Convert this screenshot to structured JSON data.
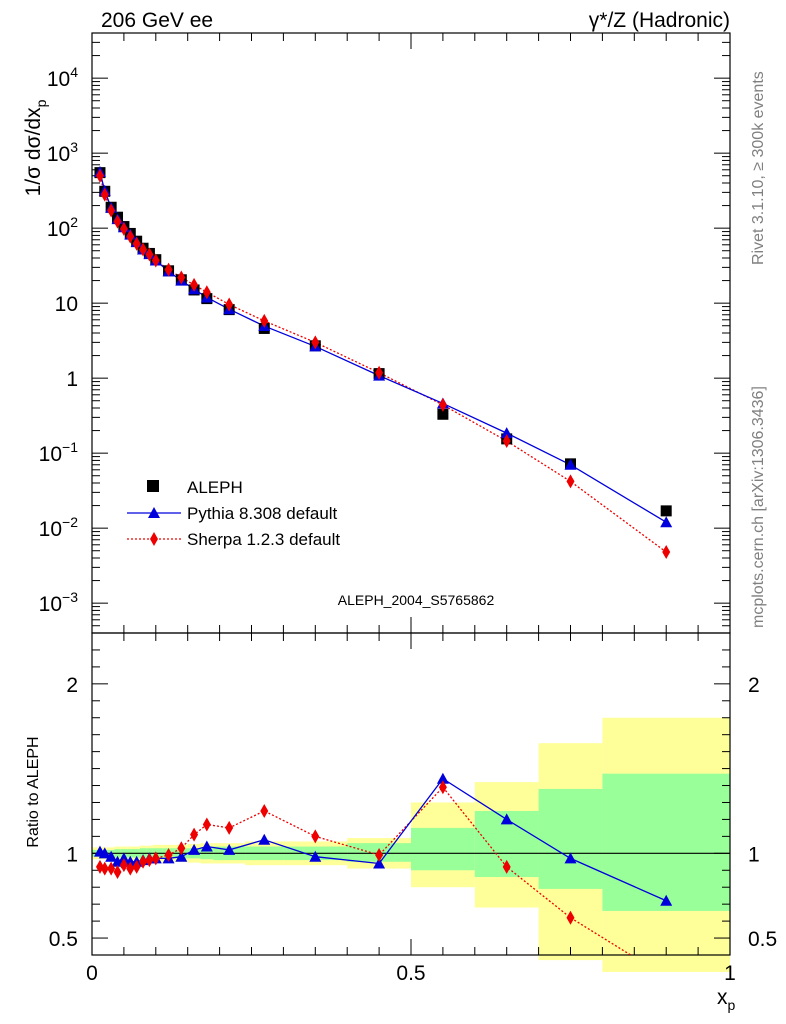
{
  "header": {
    "left": "206 GeV ee",
    "right": "γ*/Z (Hadronic)"
  },
  "side": {
    "rivet": "Rivet 3.1.10, ≥ 300k events",
    "mcplots": "mcplots.cern.ch [arXiv:1306.3436]"
  },
  "watermark": "ALEPH_2004_S5765862",
  "legend": {
    "data": "ALEPH",
    "pythia": "Pythia 8.308 default",
    "sherpa": "Sherpa 1.2.3 default"
  },
  "axes": {
    "ylabel_main": "1/σ dσ/dx",
    "ylabel_main_sub": "p",
    "ylabel_ratio": "Ratio to ALEPH",
    "xlabel": "x",
    "xlabel_sub": "p"
  },
  "ticks": {
    "x": [
      "0",
      "0.5",
      "1"
    ],
    "y_main_plain": [
      "1",
      "10"
    ],
    "y_main_pow": [
      {
        "base": "10",
        "exp": "4"
      },
      {
        "base": "10",
        "exp": "3"
      },
      {
        "base": "10",
        "exp": "2"
      },
      {
        "base": "10",
        "exp": "−1"
      },
      {
        "base": "10",
        "exp": "−2"
      },
      {
        "base": "10",
        "exp": "−3"
      }
    ],
    "y_ratio": [
      "2",
      "1",
      "0.5"
    ]
  },
  "colors": {
    "data": "#000000",
    "pythia": "#0000dd",
    "sherpa": "#ee0000",
    "band_inner": "#99ff99",
    "band_outer": "#ffff99"
  },
  "chart_data": [
    {
      "type": "scatter",
      "panel": "main",
      "yscale": "log",
      "xlim": [
        0,
        1
      ],
      "ylim": [
        0.0004,
        40000
      ],
      "series": [
        {
          "name": "ALEPH",
          "x": [
            0.0125,
            0.02,
            0.03,
            0.04,
            0.05,
            0.06,
            0.07,
            0.08,
            0.09,
            0.1,
            0.12,
            0.14,
            0.16,
            0.18,
            0.215,
            0.27,
            0.35,
            0.45,
            0.55,
            0.65,
            0.75,
            0.9
          ],
          "y": [
            550,
            310,
            190,
            140,
            105,
            85,
            67,
            54,
            46,
            38,
            27,
            20.5,
            15,
            11.5,
            8.2,
            4.6,
            2.7,
            1.15,
            0.33,
            0.155,
            0.072,
            0.017
          ]
        },
        {
          "name": "Pythia 8.308 default",
          "x": [
            0.0125,
            0.02,
            0.03,
            0.04,
            0.05,
            0.06,
            0.07,
            0.08,
            0.09,
            0.1,
            0.12,
            0.14,
            0.16,
            0.18,
            0.215,
            0.27,
            0.35,
            0.45,
            0.55,
            0.65,
            0.75,
            0.9
          ],
          "y": [
            560,
            315,
            187,
            132,
            103,
            82,
            65,
            52,
            45,
            37,
            26.5,
            20,
            15.3,
            11.9,
            8.3,
            4.95,
            2.65,
            1.08,
            0.46,
            0.185,
            0.07,
            0.012
          ]
        },
        {
          "name": "Sherpa 1.2.3 default",
          "x": [
            0.0125,
            0.02,
            0.03,
            0.04,
            0.05,
            0.06,
            0.07,
            0.08,
            0.09,
            0.1,
            0.12,
            0.14,
            0.16,
            0.18,
            0.215,
            0.27,
            0.35,
            0.45,
            0.55,
            0.65,
            0.75,
            0.9
          ],
          "y": [
            500,
            280,
            172,
            122,
            98,
            77,
            62,
            52,
            44.5,
            37,
            28,
            22,
            17.5,
            14,
            9.6,
            5.8,
            3.0,
            1.18,
            0.44,
            0.145,
            0.042,
            0.0048
          ]
        }
      ]
    },
    {
      "type": "line",
      "panel": "ratio",
      "xlim": [
        0,
        1
      ],
      "ylim": [
        0.4,
        2.3
      ],
      "xlabel": "x",
      "ylabel": "Ratio to ALEPH",
      "reference": 1,
      "bands": [
        {
          "x0": 0,
          "x1": 0.0175,
          "inner": [
            0.98,
            1.02
          ],
          "outer": [
            0.965,
            1.035
          ]
        },
        {
          "x0": 0.0175,
          "x1": 0.025,
          "inner": [
            0.98,
            1.02
          ],
          "outer": [
            0.965,
            1.035
          ]
        },
        {
          "x0": 0.025,
          "x1": 0.035,
          "inner": [
            0.98,
            1.02
          ],
          "outer": [
            0.965,
            1.035
          ]
        },
        {
          "x0": 0.035,
          "x1": 0.045,
          "inner": [
            0.975,
            1.025
          ],
          "outer": [
            0.96,
            1.04
          ]
        },
        {
          "x0": 0.045,
          "x1": 0.055,
          "inner": [
            0.975,
            1.025
          ],
          "outer": [
            0.96,
            1.04
          ]
        },
        {
          "x0": 0.055,
          "x1": 0.065,
          "inner": [
            0.975,
            1.025
          ],
          "outer": [
            0.96,
            1.04
          ]
        },
        {
          "x0": 0.065,
          "x1": 0.075,
          "inner": [
            0.975,
            1.025
          ],
          "outer": [
            0.96,
            1.04
          ]
        },
        {
          "x0": 0.075,
          "x1": 0.085,
          "inner": [
            0.97,
            1.03
          ],
          "outer": [
            0.955,
            1.045
          ]
        },
        {
          "x0": 0.085,
          "x1": 0.095,
          "inner": [
            0.97,
            1.03
          ],
          "outer": [
            0.955,
            1.045
          ]
        },
        {
          "x0": 0.095,
          "x1": 0.11,
          "inner": [
            0.97,
            1.03
          ],
          "outer": [
            0.95,
            1.05
          ]
        },
        {
          "x0": 0.11,
          "x1": 0.13,
          "inner": [
            0.97,
            1.03
          ],
          "outer": [
            0.95,
            1.05
          ]
        },
        {
          "x0": 0.13,
          "x1": 0.15,
          "inner": [
            0.97,
            1.03
          ],
          "outer": [
            0.95,
            1.05
          ]
        },
        {
          "x0": 0.15,
          "x1": 0.17,
          "inner": [
            0.97,
            1.03
          ],
          "outer": [
            0.945,
            1.055
          ]
        },
        {
          "x0": 0.17,
          "x1": 0.19,
          "inner": [
            0.965,
            1.035
          ],
          "outer": [
            0.94,
            1.06
          ]
        },
        {
          "x0": 0.19,
          "x1": 0.24,
          "inner": [
            0.96,
            1.04
          ],
          "outer": [
            0.94,
            1.06
          ]
        },
        {
          "x0": 0.24,
          "x1": 0.3,
          "inner": [
            0.96,
            1.04
          ],
          "outer": [
            0.93,
            1.07
          ]
        },
        {
          "x0": 0.3,
          "x1": 0.4,
          "inner": [
            0.96,
            1.04
          ],
          "outer": [
            0.93,
            1.07
          ]
        },
        {
          "x0": 0.4,
          "x1": 0.5,
          "inner": [
            0.95,
            1.06
          ],
          "outer": [
            0.91,
            1.09
          ]
        },
        {
          "x0": 0.5,
          "x1": 0.6,
          "inner": [
            0.9,
            1.15
          ],
          "outer": [
            0.8,
            1.3
          ]
        },
        {
          "x0": 0.6,
          "x1": 0.7,
          "inner": [
            0.86,
            1.25
          ],
          "outer": [
            0.68,
            1.42
          ]
        },
        {
          "x0": 0.7,
          "x1": 0.8,
          "inner": [
            0.79,
            1.38
          ],
          "outer": [
            0.37,
            1.65
          ]
        },
        {
          "x0": 0.8,
          "x1": 1.0,
          "inner": [
            0.66,
            1.47
          ],
          "outer": [
            0.3,
            1.8
          ]
        }
      ],
      "series": [
        {
          "name": "Pythia 8.308 default",
          "x": [
            0.0125,
            0.02,
            0.03,
            0.04,
            0.05,
            0.06,
            0.07,
            0.08,
            0.09,
            0.1,
            0.12,
            0.14,
            0.16,
            0.18,
            0.215,
            0.27,
            0.35,
            0.45,
            0.55,
            0.65,
            0.75,
            0.9
          ],
          "y": [
            1.01,
            1.0,
            0.98,
            0.95,
            0.97,
            0.95,
            0.95,
            0.96,
            0.97,
            0.97,
            0.97,
            0.98,
            1.02,
            1.04,
            1.02,
            1.08,
            0.98,
            0.94,
            1.44,
            1.2,
            0.97,
            0.72
          ]
        },
        {
          "name": "Sherpa 1.2.3 default",
          "x": [
            0.0125,
            0.02,
            0.03,
            0.04,
            0.05,
            0.06,
            0.07,
            0.08,
            0.09,
            0.1,
            0.12,
            0.14,
            0.16,
            0.18,
            0.215,
            0.27,
            0.35,
            0.45,
            0.55,
            0.65,
            0.75,
            0.9
          ],
          "y": [
            0.92,
            0.91,
            0.91,
            0.89,
            0.93,
            0.91,
            0.92,
            0.95,
            0.96,
            0.97,
            0.99,
            1.03,
            1.11,
            1.17,
            1.15,
            1.25,
            1.1,
            0.99,
            1.39,
            0.92,
            0.62,
            0.27
          ]
        }
      ]
    }
  ]
}
